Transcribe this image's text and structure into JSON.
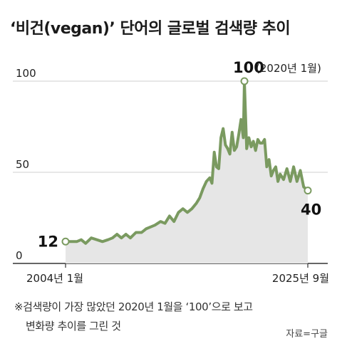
{
  "title": "‘비건(vegan)’ 단어의 글로벌 검색량 추이",
  "footnote": {
    "line1": "※검색량이 가장 많았던 2020년 1월을 ‘100’으로 보고",
    "line2": "변화량 추이를 그린 것"
  },
  "source": "자료=구글",
  "colors": {
    "line": "#7a9a60",
    "area": "#e6e6e6",
    "text": "#222222",
    "axis": "#333333"
  },
  "chart_data": {
    "type": "area",
    "ylim": [
      0,
      100
    ],
    "yticks": [
      "0",
      "50",
      "100"
    ],
    "xlabels": {
      "start": "2004년 1월",
      "end": "2025년 9월"
    },
    "x_range": [
      2004.0,
      2025.67
    ],
    "annotations": {
      "start": {
        "value": "12"
      },
      "peak": {
        "value": "100",
        "label": "(2020년 1월)"
      },
      "end": {
        "value": "40"
      }
    },
    "series": [
      {
        "x": [
          2004.0,
          2004.5,
          2005.0,
          2005.4,
          2005.8,
          2006.3,
          2006.8,
          2007.3,
          2007.8,
          2008.2,
          2008.6,
          2009.0,
          2009.4,
          2009.8,
          2010.3,
          2010.8,
          2011.2,
          2011.6,
          2012.0,
          2012.5,
          2012.9,
          2013.3,
          2013.7,
          2014.1,
          2014.5,
          2014.9,
          2015.3,
          2015.7,
          2016.0,
          2016.3,
          2016.6,
          2016.9,
          2017.1,
          2017.3,
          2017.5,
          2017.7,
          2017.9,
          2018.1,
          2018.3,
          2018.5,
          2018.7,
          2018.9,
          2019.1,
          2019.3,
          2019.5,
          2019.7,
          2019.9,
          2020.0,
          2020.2,
          2020.4,
          2020.6,
          2020.8,
          2021.0,
          2021.2,
          2021.4,
          2021.6,
          2021.8,
          2022.0,
          2022.2,
          2022.4,
          2022.6,
          2022.8,
          2023.0,
          2023.2,
          2023.5,
          2023.8,
          2024.1,
          2024.4,
          2024.7,
          2025.0,
          2025.3,
          2025.67
        ],
        "values": [
          12,
          12,
          12,
          13,
          11,
          14,
          13,
          12,
          13,
          14,
          16,
          14,
          16,
          14,
          17,
          17,
          19,
          20,
          21,
          23,
          22,
          26,
          23,
          28,
          30,
          28,
          30,
          33,
          36,
          41,
          45,
          47,
          44,
          61,
          53,
          52,
          69,
          74,
          65,
          63,
          60,
          72,
          62,
          64,
          71,
          79,
          69,
          100,
          63,
          69,
          64,
          67,
          62,
          68,
          66,
          66,
          68,
          53,
          57,
          48,
          51,
          53,
          45,
          49,
          46,
          52,
          45,
          53,
          45,
          51,
          42,
          40
        ]
      }
    ]
  }
}
